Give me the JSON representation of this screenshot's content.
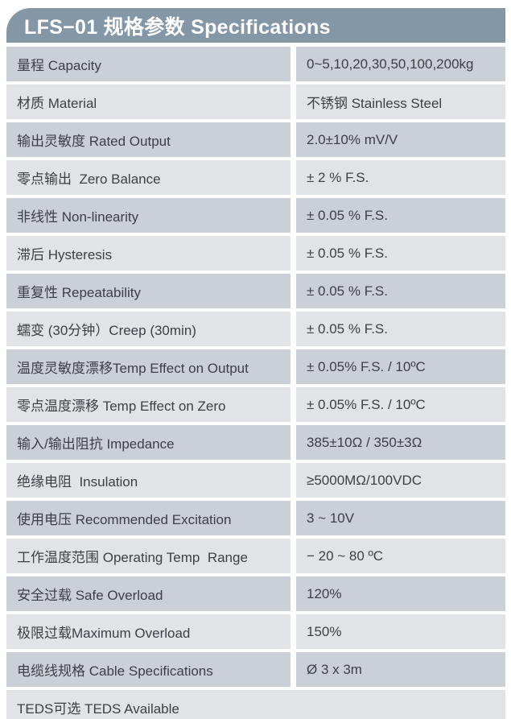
{
  "header": {
    "title": "LFS−01 规格参数 Specifications"
  },
  "colors": {
    "header_bg": "#8497A7",
    "header_text": "#FFFFFF",
    "row_dark": "#CBCFD6",
    "row_light": "#E1E3E7",
    "cell_text": "#3D4046",
    "page_bg": "#FFFFFF"
  },
  "table": {
    "rows": [
      {
        "label": "量程 Capacity",
        "value": "0~5,10,20,30,50,100,200kg",
        "shade": "dark"
      },
      {
        "label": "材质 Material",
        "value": "不锈钢 Stainless Steel",
        "shade": "light"
      },
      {
        "label": "输出灵敏度 Rated Output",
        "value": "2.0±10% mV/V",
        "shade": "dark"
      },
      {
        "label": "零点输出  Zero Balance",
        "value": "± 2 % F.S.",
        "shade": "light"
      },
      {
        "label": "非线性 Non-linearity",
        "value": "± 0.05 % F.S.",
        "shade": "dark"
      },
      {
        "label": "滞后 Hysteresis",
        "value": "± 0.05 % F.S.",
        "shade": "light"
      },
      {
        "label": "重复性 Repeatability",
        "value": "± 0.05 % F.S.",
        "shade": "dark"
      },
      {
        "label": "蠕变 (30分钟）Creep (30min)",
        "value": "± 0.05 % F.S.",
        "shade": "light"
      },
      {
        "label": "温度灵敏度漂移Temp Effect on Output",
        "value": "± 0.05% F.S. / 10ºC",
        "shade": "dark"
      },
      {
        "label": "零点温度漂移 Temp Effect on Zero",
        "value": "± 0.05% F.S. / 10ºC",
        "shade": "light"
      },
      {
        "label": "输入/输出阻抗 Impedance",
        "value": "385±10Ω / 350±3Ω",
        "shade": "dark"
      },
      {
        "label": "绝缘电阻  Insulation",
        "value": "≥5000MΩ/100VDC",
        "shade": "light"
      },
      {
        "label": "使用电压 Recommended Excitation",
        "value": "3 ~ 10V",
        "shade": "dark"
      },
      {
        "label": "工作温度范围 Operating Temp  Range",
        "value": "− 20 ~ 80 ºC",
        "shade": "light"
      },
      {
        "label": "安全过载 Safe Overload",
        "value": "120%",
        "shade": "dark"
      },
      {
        "label": "极限过载Maximum Overload",
        "value": "150%",
        "shade": "light"
      },
      {
        "label": "电缆线规格 Cable Specifications",
        "value": "Ø 3 x 3m",
        "shade": "dark"
      },
      {
        "label": "TEDS可选 TEDS Available",
        "value": "",
        "shade": "light",
        "full_width": true
      }
    ]
  }
}
